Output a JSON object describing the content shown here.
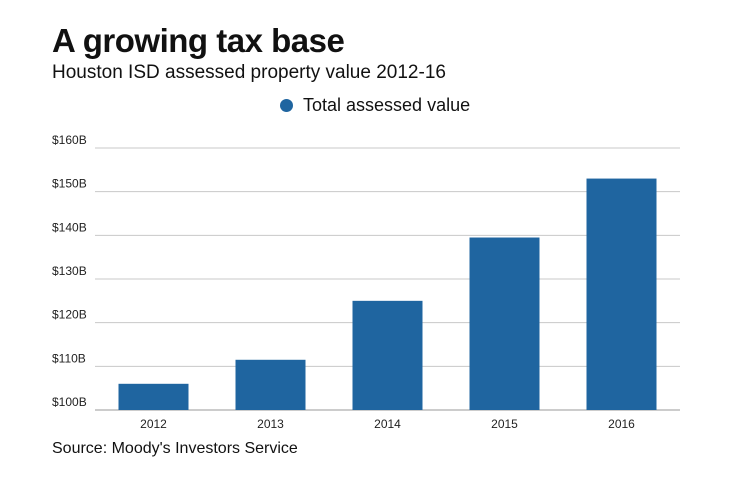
{
  "title": "A growing tax base",
  "subtitle": "Houston ISD assessed property value 2012-16",
  "source": "Source: Moody's Investors Service",
  "colors": {
    "bar": "#1f65a0",
    "grid": "#c8c8c8",
    "axis": "#9a9a9a"
  },
  "chart_data": {
    "type": "bar",
    "title": "A growing tax base",
    "subtitle": "Houston ISD assessed property value 2012-16",
    "categories": [
      "2012",
      "2013",
      "2014",
      "2015",
      "2016"
    ],
    "series": [
      {
        "name": "Total assessed value",
        "values": [
          106,
          111.5,
          125,
          139.5,
          153
        ]
      }
    ],
    "unit": "billions of dollars",
    "ylim": [
      100,
      160
    ],
    "yticks": [
      100,
      110,
      120,
      130,
      140,
      150,
      160
    ],
    "ytick_labels": [
      "$100B",
      "$110B",
      "$120B",
      "$130B",
      "$140B",
      "$150B",
      "$160B"
    ],
    "grid": true,
    "legend_position": "top-center"
  }
}
